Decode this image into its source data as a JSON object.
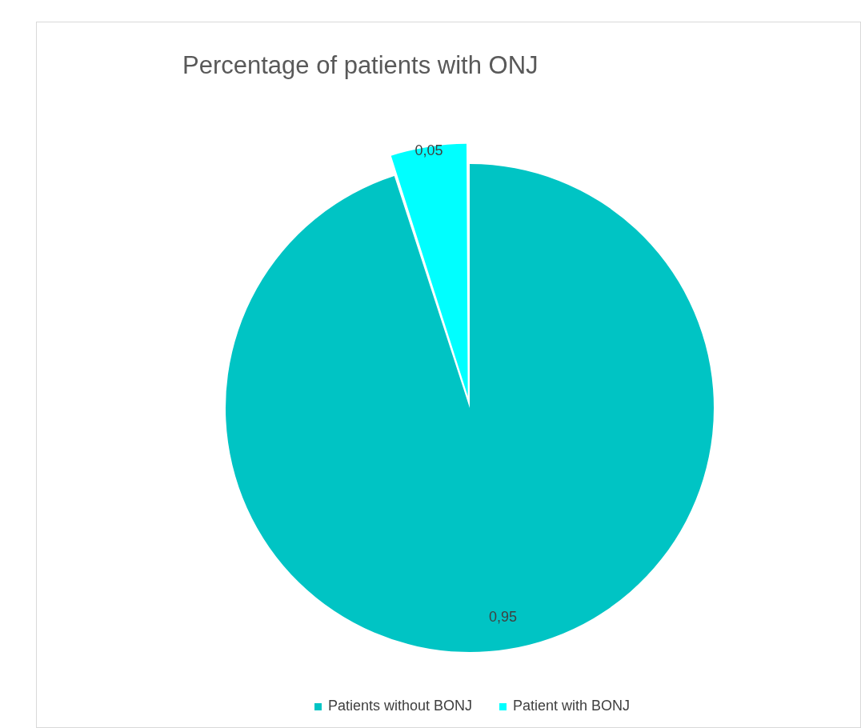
{
  "chart_data": {
    "type": "pie",
    "title": "Percentage of patients with ONJ",
    "categories": [
      "Patients without BONJ",
      "Patient with BONJ"
    ],
    "values": [
      0.95,
      0.05
    ],
    "value_labels": [
      "0,95",
      "0,05"
    ],
    "colors": [
      "#00c4c4",
      "#00ffff"
    ],
    "legend": "bottom"
  }
}
